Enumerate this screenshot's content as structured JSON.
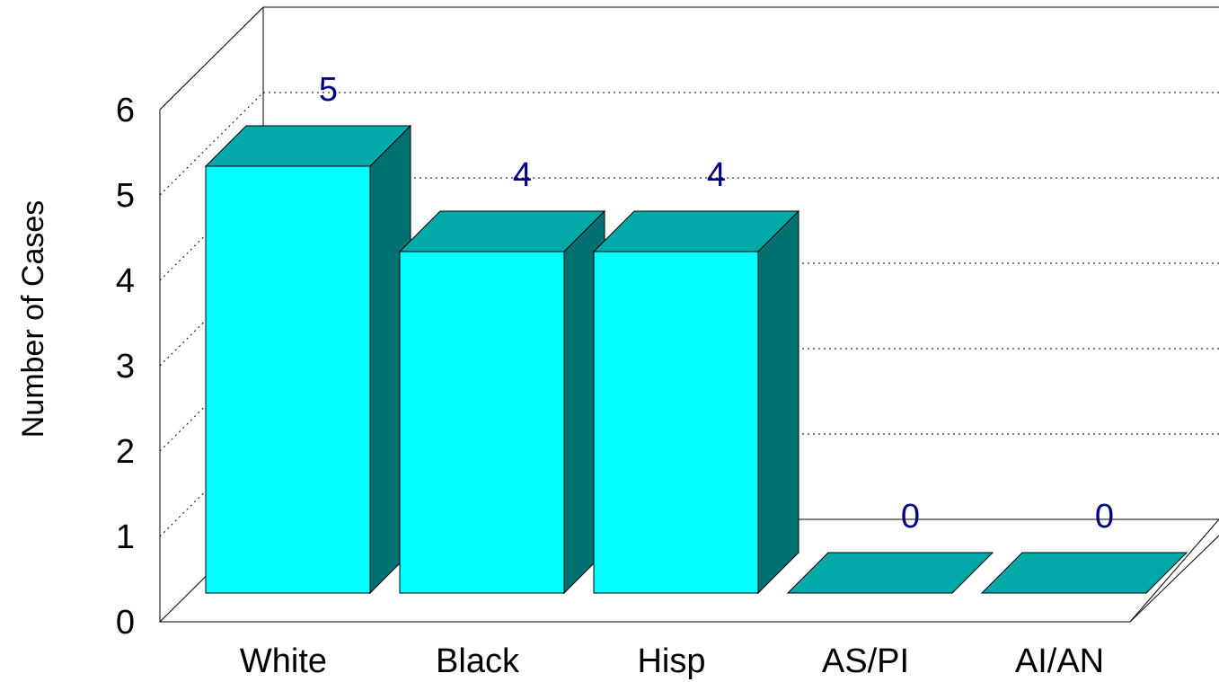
{
  "chart_data": {
    "type": "bar",
    "categories": [
      "White",
      "Black",
      "Hisp",
      "AS/PI",
      "AI/AN"
    ],
    "values": [
      5,
      4,
      4,
      0,
      0
    ],
    "data_labels": [
      "5",
      "4",
      "4",
      "0",
      "0"
    ],
    "ylabel": "Number of Cases",
    "xlabel": "",
    "ylim": [
      0,
      6
    ],
    "yticks": [
      "0",
      "1",
      "2",
      "3",
      "4",
      "5",
      "6"
    ],
    "grid": true,
    "style": "3d",
    "colors": {
      "front": "#00FFFF",
      "top": "#00A8A8",
      "side": "#007070",
      "label": "#000080"
    }
  }
}
